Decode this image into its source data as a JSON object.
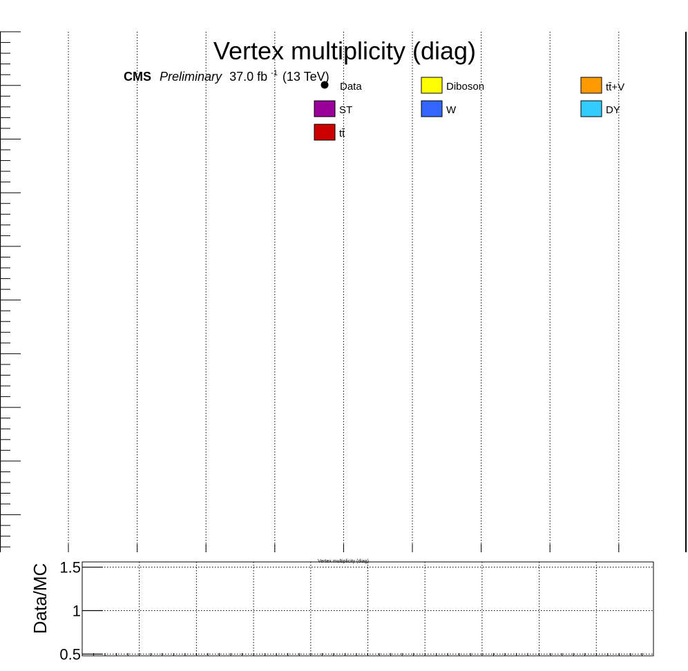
{
  "chart_data": [
    {
      "type": "bar",
      "title": "Vertex multiplicity (diag)",
      "annotation": {
        "experiment": "CMS",
        "status": "Preliminary",
        "lumi_value": "37.0 fb",
        "lumi_exponent": "-1",
        "energy": "(13 TeV)"
      },
      "legend": {
        "placement": "top",
        "entries": [
          {
            "label": "Data",
            "marker": "point",
            "color": "#000000"
          },
          {
            "label": "Diboson",
            "marker": "box",
            "color": "#ffff00"
          },
          {
            "label": "tt̄+V",
            "marker": "box",
            "color": "#ff9900"
          },
          {
            "label": "ST",
            "marker": "box",
            "color": "#990099"
          },
          {
            "label": "W",
            "marker": "box",
            "color": "#3366ff"
          },
          {
            "label": "DY",
            "marker": "box",
            "color": "#33ccff"
          },
          {
            "label": "tt̄",
            "marker": "box",
            "color": "#cc0000"
          }
        ]
      },
      "x_tick_count": 8,
      "series": [],
      "grid": true
    },
    {
      "type": "line",
      "ylabel": "Data/MC",
      "xlabel": "Vertex multiplicity (diag)",
      "ylim": [
        0.48,
        1.56
      ],
      "yticks": [
        {
          "value": 0.5,
          "label": "0.5"
        },
        {
          "value": 1,
          "label": "1"
        },
        {
          "value": 1.5,
          "label": "1.5"
        }
      ],
      "x_grid_count": 10,
      "series": [],
      "grid": true
    }
  ]
}
